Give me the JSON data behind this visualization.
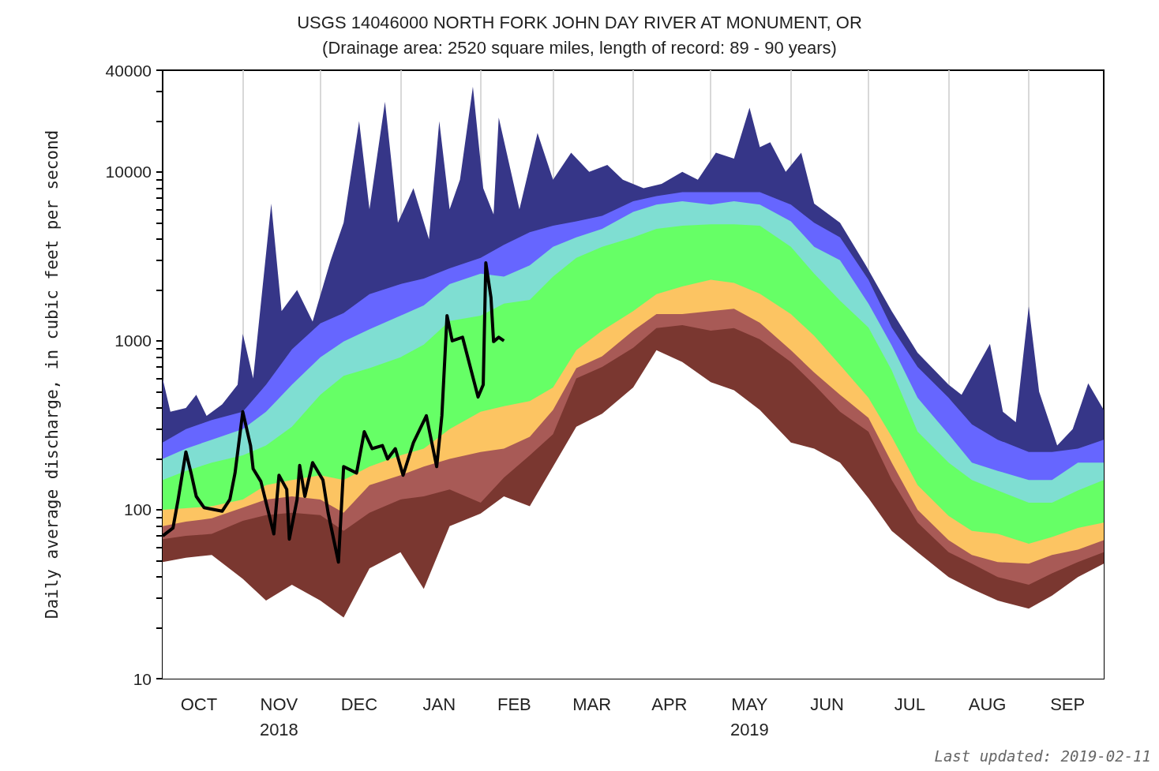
{
  "chart_data": {
    "type": "area",
    "title": "USGS 14046000 NORTH FORK JOHN DAY RIVER AT MONUMENT, OR",
    "subtitle": "(Drainage area: 2520 square miles, length of record: 89 - 90 years)",
    "ylabel": "Daily average discharge, in cubic feet per second",
    "annotations": [
      "Last updated: 2019-02-11"
    ],
    "log": true,
    "grid": "x",
    "xlim": [
      "2018-10-01",
      "2019-09-30"
    ],
    "xticks": [
      {
        "value": "2018-11-01",
        "label": null
      },
      {
        "value": "2018-12-01",
        "label": null
      },
      {
        "value": "2019-01-01",
        "label": null
      },
      {
        "value": "2019-02-01",
        "label": null
      },
      {
        "value": "2019-03-01",
        "label": null
      },
      {
        "value": "2019-04-01",
        "label": null
      },
      {
        "value": "2019-05-01",
        "label": null
      },
      {
        "value": "2019-06-01",
        "label": null
      },
      {
        "value": "2019-07-01",
        "label": null
      },
      {
        "value": "2019-08-01",
        "label": null
      },
      {
        "value": "2019-09-01",
        "label": null
      },
      {
        "value": "2018-10-15",
        "label": "OCT"
      },
      {
        "value": "2018-11-15",
        "label": "NOV\n2018"
      },
      {
        "value": "2018-12-16",
        "label": "DEC"
      },
      {
        "value": "2019-01-16",
        "label": "JAN"
      },
      {
        "value": "2019-02-14",
        "label": "FEB"
      },
      {
        "value": "2019-03-16",
        "label": "MAR"
      },
      {
        "value": "2019-04-15",
        "label": "APR"
      },
      {
        "value": "2019-05-16",
        "label": "MAY\n2019"
      },
      {
        "value": "2019-06-15",
        "label": "JUN"
      },
      {
        "value": "2019-07-17",
        "label": "JUL"
      },
      {
        "value": "2019-08-16",
        "label": "AUG"
      },
      {
        "value": "2019-09-16",
        "label": "SEP"
      }
    ],
    "ylim": [
      10,
      40000
    ],
    "yticks": [
      10,
      {
        "value": 20,
        "label": null
      },
      {
        "value": 30,
        "label": null
      },
      {
        "value": 40,
        "label": null
      },
      {
        "value": 50,
        "label": null
      },
      {
        "value": 60,
        "label": null
      },
      {
        "value": 70,
        "label": null
      },
      {
        "value": 80,
        "label": null
      },
      {
        "value": 90,
        "label": null
      },
      100,
      {
        "value": 200,
        "label": null
      },
      {
        "value": 300,
        "label": null
      },
      {
        "value": 400,
        "label": null
      },
      {
        "value": 500,
        "label": null
      },
      {
        "value": 600,
        "label": null
      },
      {
        "value": 700,
        "label": null
      },
      {
        "value": 800,
        "label": null
      },
      {
        "value": 900,
        "label": null
      },
      1000,
      {
        "value": 2000,
        "label": null
      },
      {
        "value": 3000,
        "label": null
      },
      {
        "value": 4000,
        "label": null
      },
      {
        "value": 5000,
        "label": null
      },
      {
        "value": 6000,
        "label": null
      },
      {
        "value": 7000,
        "label": null
      },
      {
        "value": 8000,
        "label": null
      },
      {
        "value": 9000,
        "label": null
      },
      10000,
      {
        "value": 20000,
        "label": null
      },
      {
        "value": 30000,
        "label": null
      },
      40000
    ],
    "x": [
      "2018-10-01",
      "2018-10-10",
      "2018-10-20",
      "2018-11-01",
      "2018-11-10",
      "2018-11-20",
      "2018-12-01",
      "2018-12-10",
      "2018-12-20",
      "2019-01-01",
      "2019-01-10",
      "2019-01-20",
      "2019-02-01",
      "2019-02-10",
      "2019-02-20",
      "2019-03-01",
      "2019-03-10",
      "2019-03-20",
      "2019-04-01",
      "2019-04-10",
      "2019-04-20",
      "2019-05-01",
      "2019-05-10",
      "2019-05-20",
      "2019-06-01",
      "2019-06-10",
      "2019-06-20",
      "2019-07-01",
      "2019-07-10",
      "2019-07-20",
      "2019-08-01",
      "2019-08-10",
      "2019-08-20",
      "2019-09-01",
      "2019-09-10",
      "2019-09-20",
      "2019-09-30"
    ],
    "series": [
      {
        "color": "#363688",
        "x": [
          "2018-10-01",
          "2018-10-04",
          "2018-10-10",
          "2018-10-14",
          "2018-10-18",
          "2018-10-24",
          "2018-10-30",
          "2018-11-01",
          "2018-11-05",
          "2018-11-12",
          "2018-11-16",
          "2018-11-22",
          "2018-11-28",
          "2018-12-05",
          "2018-12-10",
          "2018-12-16",
          "2018-12-20",
          "2018-12-26",
          "2018-12-31",
          "2019-01-06",
          "2019-01-12",
          "2019-01-16",
          "2019-01-20",
          "2019-01-24",
          "2019-01-29",
          "2019-02-02",
          "2019-02-06",
          "2019-02-08",
          "2019-02-16",
          "2019-02-23",
          "2019-03-01",
          "2019-03-08",
          "2019-03-15",
          "2019-03-22",
          "2019-03-28",
          "2019-04-05",
          "2019-04-12",
          "2019-04-20",
          "2019-04-26",
          "2019-05-03",
          "2019-05-10",
          "2019-05-16",
          "2019-05-20",
          "2019-05-24",
          "2019-05-30",
          "2019-06-05",
          "2019-06-10",
          "2019-06-20",
          "2019-06-30",
          "2019-07-10",
          "2019-07-20",
          "2019-08-01",
          "2019-08-06",
          "2019-08-17",
          "2019-08-22",
          "2019-08-27",
          "2019-09-01",
          "2019-09-05",
          "2019-09-12",
          "2019-09-18",
          "2019-09-24",
          "2019-09-30"
        ],
        "values": [
          600,
          380,
          400,
          480,
          360,
          420,
          550,
          1100,
          600,
          6500,
          1500,
          2000,
          1300,
          3000,
          5000,
          20000,
          6000,
          26000,
          5000,
          8000,
          4000,
          20000,
          6000,
          9000,
          32000,
          8000,
          5600,
          21000,
          6000,
          17000,
          9000,
          13000,
          10000,
          11000,
          9000,
          8000,
          8500,
          10000,
          9000,
          13000,
          12000,
          24000,
          14000,
          15000,
          10000,
          13000,
          6500,
          5000,
          2800,
          1500,
          850,
          550,
          480,
          960,
          380,
          330,
          1600,
          500,
          240,
          300,
          560,
          390
        ]
      },
      {
        "color": "#6666ff",
        "values": [
          250,
          300,
          340,
          380,
          550,
          890,
          1270,
          1460,
          1890,
          2170,
          2340,
          2690,
          3100,
          3700,
          4400,
          4800,
          5100,
          5500,
          6700,
          7200,
          7600,
          7600,
          7600,
          7600,
          6400,
          5000,
          4100,
          2300,
          1200,
          700,
          460,
          320,
          260,
          220,
          220,
          230,
          260
        ]
      },
      {
        "color": "#7fded2",
        "values": [
          200,
          230,
          260,
          300,
          380,
          550,
          800,
          990,
          1170,
          1410,
          1620,
          2170,
          2500,
          2400,
          2800,
          3600,
          4100,
          4600,
          5800,
          6400,
          6700,
          6400,
          6700,
          6400,
          5100,
          3600,
          3000,
          1660,
          940,
          460,
          280,
          190,
          170,
          150,
          150,
          190,
          190
        ]
      },
      {
        "color": "#66ff66",
        "values": [
          150,
          170,
          190,
          210,
          240,
          310,
          480,
          620,
          690,
          800,
          950,
          1310,
          1410,
          1660,
          1750,
          2400,
          3100,
          3600,
          4100,
          4600,
          4800,
          4900,
          4900,
          4800,
          3600,
          2500,
          1730,
          1200,
          670,
          290,
          190,
          150,
          130,
          110,
          110,
          130,
          150
        ]
      },
      {
        "color": "#fcc462",
        "values": [
          100,
          102,
          105,
          115,
          140,
          150,
          160,
          150,
          180,
          210,
          230,
          300,
          380,
          410,
          440,
          530,
          880,
          1150,
          1500,
          1890,
          2100,
          2300,
          2200,
          1900,
          1440,
          1070,
          720,
          460,
          270,
          140,
          92,
          75,
          72,
          63,
          69,
          78,
          84
        ]
      },
      {
        "color": "#a85a56",
        "values": [
          80,
          85,
          89,
          103,
          115,
          120,
          115,
          96,
          140,
          160,
          180,
          200,
          220,
          230,
          270,
          390,
          690,
          810,
          1150,
          1440,
          1440,
          1500,
          1550,
          1280,
          880,
          650,
          480,
          350,
          190,
          100,
          66,
          54,
          49,
          48,
          54,
          58,
          66
        ]
      },
      {
        "color": "#7a3730",
        "values": [
          67,
          70,
          72,
          86,
          93,
          96,
          93,
          75,
          96,
          115,
          120,
          132,
          110,
          155,
          210,
          280,
          600,
          700,
          910,
          1190,
          1240,
          1150,
          1190,
          1020,
          750,
          550,
          380,
          290,
          150,
          84,
          56,
          48,
          40,
          36,
          42,
          49,
          56
        ]
      },
      {
        "color": "#ffffff",
        "values": [
          49,
          52,
          54,
          39,
          29,
          36,
          29,
          23,
          45,
          56,
          34,
          80,
          95,
          120,
          105,
          180,
          310,
          370,
          530,
          880,
          750,
          570,
          510,
          390,
          250,
          230,
          190,
          117,
          75,
          56,
          40,
          34,
          29,
          26,
          31,
          40,
          48
        ]
      },
      {
        "type": "line",
        "color": "#000000",
        "x": [
          "2018-10-01",
          "2018-10-05",
          "2018-10-07",
          "2018-10-10",
          "2018-10-12",
          "2018-10-14",
          "2018-10-17",
          "2018-10-24",
          "2018-10-27",
          "2018-10-29",
          "2018-11-01",
          "2018-11-04",
          "2018-11-05",
          "2018-11-08",
          "2018-11-13",
          "2018-11-15",
          "2018-11-18",
          "2018-11-19",
          "2018-11-22",
          "2018-11-23",
          "2018-11-25",
          "2018-11-28",
          "2018-12-02",
          "2018-12-04",
          "2018-12-08",
          "2018-12-10",
          "2018-12-15",
          "2018-12-18",
          "2018-12-21",
          "2018-12-25",
          "2018-12-27",
          "2018-12-30",
          "2019-01-02",
          "2019-01-06",
          "2019-01-11",
          "2019-01-15",
          "2019-01-17",
          "2019-01-19",
          "2019-01-21",
          "2019-01-25",
          "2019-01-31",
          "2019-02-02",
          "2019-02-03",
          "2019-02-05",
          "2019-02-06",
          "2019-02-08",
          "2019-02-10"
        ],
        "values": [
          70,
          78,
          115,
          220,
          165,
          120,
          103,
          98,
          115,
          165,
          380,
          240,
          175,
          147,
          72,
          160,
          132,
          67,
          115,
          183,
          120,
          190,
          150,
          96,
          49,
          180,
          165,
          290,
          230,
          240,
          200,
          230,
          160,
          250,
          360,
          180,
          360,
          1410,
          1000,
          1050,
          465,
          550,
          2900,
          1800,
          990,
          1050,
          1000
        ]
      }
    ]
  }
}
